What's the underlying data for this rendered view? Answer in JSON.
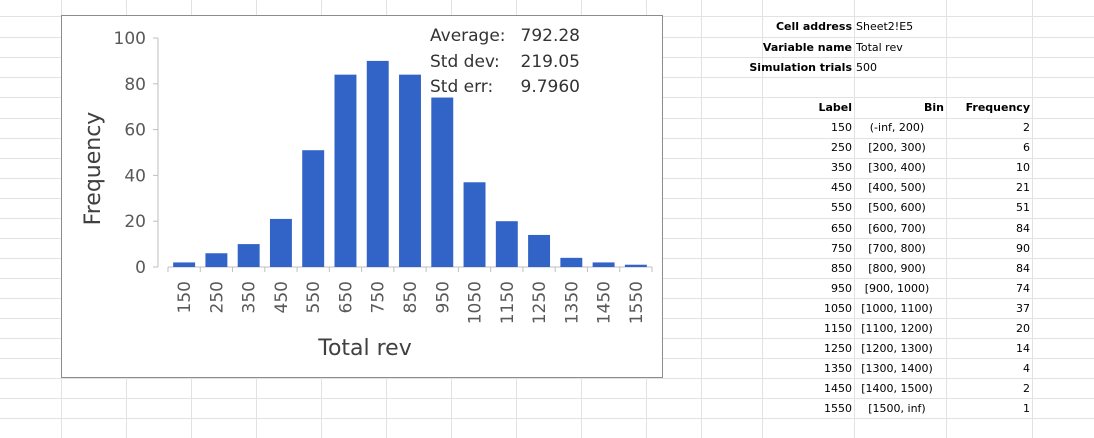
{
  "chart_data": {
    "type": "bar",
    "categories": [
      "150",
      "250",
      "350",
      "450",
      "550",
      "650",
      "750",
      "850",
      "950",
      "1050",
      "1150",
      "1250",
      "1350",
      "1450",
      "1550"
    ],
    "values": [
      2,
      6,
      10,
      21,
      51,
      84,
      90,
      84,
      74,
      37,
      20,
      14,
      4,
      2,
      1
    ],
    "xlabel": "Total rev",
    "ylabel": "Frequency",
    "ylim": [
      0,
      100
    ],
    "yticks": [
      0,
      20,
      40,
      60,
      80,
      100
    ],
    "bar_color": "#3264c8",
    "grid": false
  },
  "stats": [
    {
      "label": "Average:",
      "value": "792.28"
    },
    {
      "label": "Std dev:",
      "value": "219.05"
    },
    {
      "label": "Std err:",
      "value": "9.7960"
    }
  ],
  "info": [
    {
      "key": "Cell address",
      "value": "Sheet2!E5"
    },
    {
      "key": "Variable name",
      "value": "Total rev"
    },
    {
      "key": "Simulation trials",
      "value": "500"
    }
  ],
  "table": {
    "headers": [
      "Label",
      "Bin",
      "Frequency"
    ],
    "rows": [
      [
        "150",
        "(-inf, 200)",
        "2"
      ],
      [
        "250",
        "[200, 300)",
        "6"
      ],
      [
        "350",
        "[300, 400)",
        "10"
      ],
      [
        "450",
        "[400, 500)",
        "21"
      ],
      [
        "550",
        "[500, 600)",
        "51"
      ],
      [
        "650",
        "[600, 700)",
        "84"
      ],
      [
        "750",
        "[700, 800)",
        "90"
      ],
      [
        "850",
        "[800, 900)",
        "84"
      ],
      [
        "950",
        "[900, 1000)",
        "74"
      ],
      [
        "1050",
        "[1000, 1100)",
        "37"
      ],
      [
        "1150",
        "[1100, 1200)",
        "20"
      ],
      [
        "1250",
        "[1200, 1300)",
        "14"
      ],
      [
        "1350",
        "[1300, 1400)",
        "4"
      ],
      [
        "1450",
        "[1400, 1500)",
        "2"
      ],
      [
        "1550",
        "[1500, inf)",
        "1"
      ]
    ]
  }
}
